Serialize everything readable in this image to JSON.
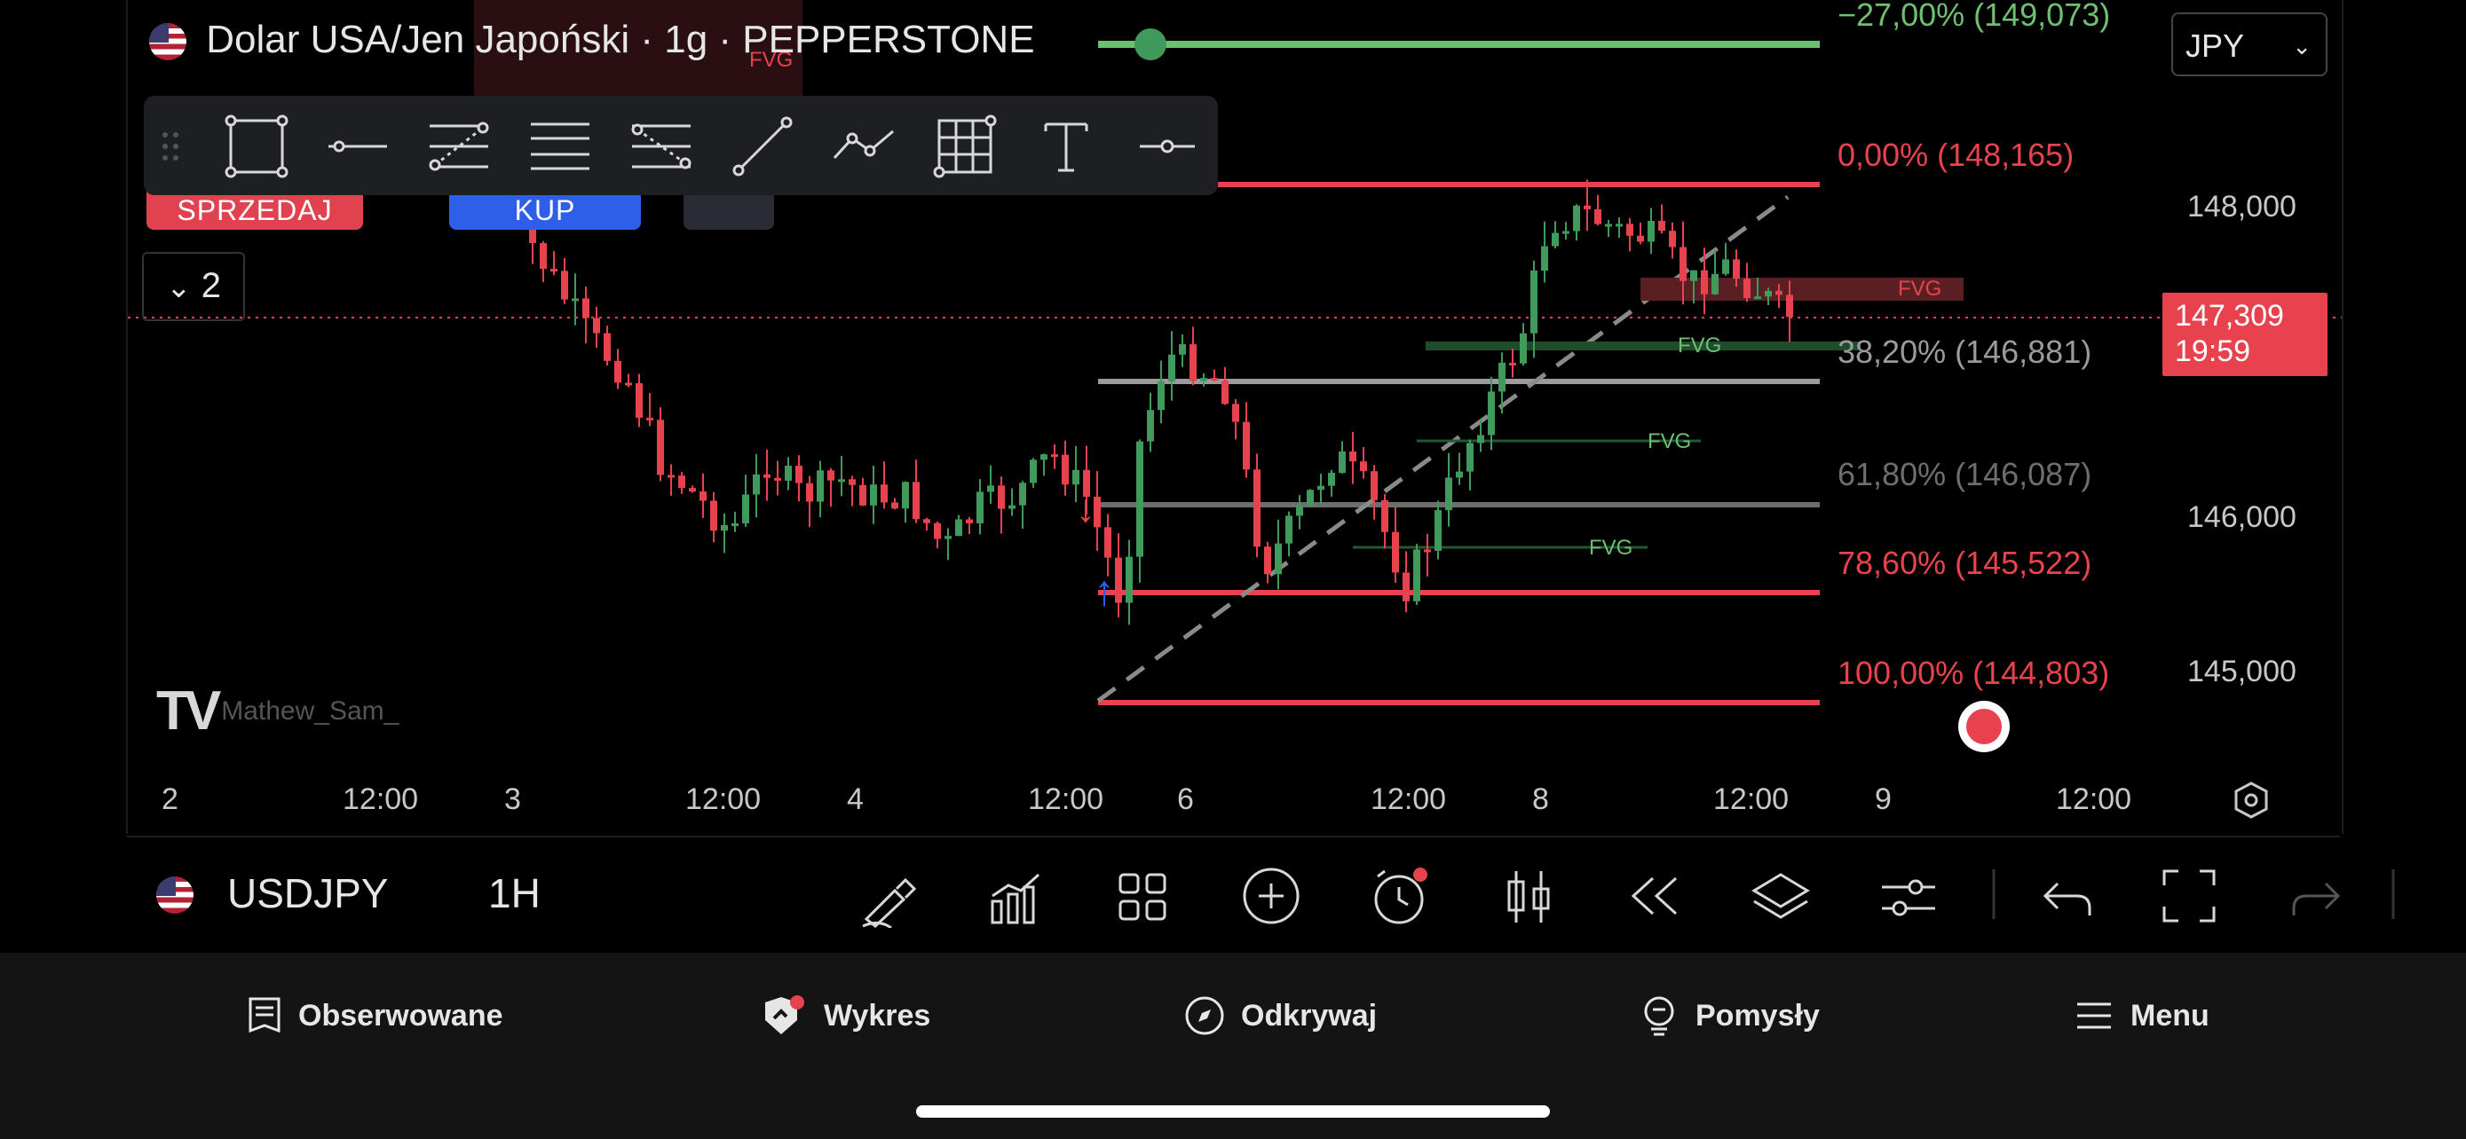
{
  "header": {
    "title": "Dolar USA/Jen Japoński · 1g · PEPPERSTONE",
    "currency": "JPY"
  },
  "order_buttons": {
    "sell": "SPRZEDAJ",
    "buy": "KUP"
  },
  "indicator_toggle": "2",
  "fib_levels": [
    {
      "label": "−27,00% (149,073)",
      "color": "#6fbf73"
    },
    {
      "label": "0,00% (148,165)",
      "color": "#e8424e"
    },
    {
      "label": "38,20% (146,881)",
      "color": "#9b9b9b"
    },
    {
      "label": "61,80% (146,087)",
      "color": "#6e6e6e"
    },
    {
      "label": "78,60% (145,522)",
      "color": "#e8424e"
    },
    {
      "label": "100,00% (144,803)",
      "color": "#e8424e"
    }
  ],
  "y_axis": [
    "148,000",
    "146,000",
    "145,000"
  ],
  "price_tag": {
    "price": "147,309",
    "countdown": "19:59"
  },
  "x_axis": [
    "2",
    "12:00",
    "3",
    "12:00",
    "4",
    "12:00",
    "6",
    "12:00",
    "8",
    "12:00",
    "9",
    "12:00"
  ],
  "fvg_labels": [
    "FVG",
    "FVG",
    "FVG",
    "FVG",
    "FVG"
  ],
  "watermark_user": "Mathew_Sam_",
  "bottom_toolbar": {
    "symbol": "USDJPY",
    "interval": "1H"
  },
  "tabs": [
    {
      "label": "Obserwowane",
      "icon": "watchlist-icon"
    },
    {
      "label": "Wykres",
      "icon": "chart-icon"
    },
    {
      "label": "Odkrywaj",
      "icon": "compass-icon"
    },
    {
      "label": "Pomysły",
      "icon": "ideas-icon"
    },
    {
      "label": "Menu",
      "icon": "menu-icon"
    }
  ],
  "colors": {
    "up": "#3f9a5c",
    "down": "#e8424e",
    "background": "#000000",
    "accent": "#2f5fe8"
  }
}
